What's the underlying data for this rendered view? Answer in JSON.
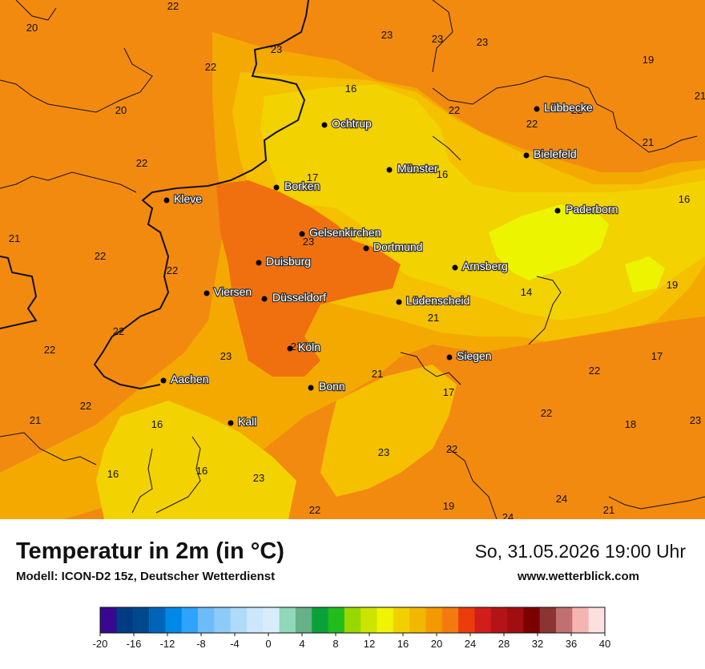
{
  "title": "Temperatur in 2m (in °C)",
  "model": "Modell: ICON-D2 15z, Deutscher Wetterdienst",
  "datetime": "So, 31.05.2026 19:00 Uhr",
  "website": "www.wetterblick.com",
  "colors": {
    "t16": "#f2d200",
    "t18": "#f4c000",
    "t20": "#f4a900",
    "t22": "#f38a10",
    "t24": "#f07010",
    "t14": "#ecf400"
  },
  "cities": [
    {
      "name": "Lübbecke"
    },
    {
      "name": "Ochtrup"
    },
    {
      "name": "Bielefeld"
    },
    {
      "name": "Münster"
    },
    {
      "name": "Borken"
    },
    {
      "name": "Kleve"
    },
    {
      "name": "Paderborn"
    },
    {
      "name": "Gelsenkirchen"
    },
    {
      "name": "Dortmund"
    },
    {
      "name": "Duisburg"
    },
    {
      "name": "Arnsberg"
    },
    {
      "name": "Viersen"
    },
    {
      "name": "Düsseldorf"
    },
    {
      "name": "Lüdenscheid"
    },
    {
      "name": "Köln"
    },
    {
      "name": "Siegen"
    },
    {
      "name": "Aachen"
    },
    {
      "name": "Bonn"
    },
    {
      "name": "Kall"
    }
  ],
  "values": [
    "22",
    "20",
    "23",
    "23",
    "23",
    "23",
    "19",
    "22",
    "16",
    "20",
    "22",
    "22",
    "21",
    "21",
    "22",
    "17",
    "16",
    "16",
    "22",
    "23",
    "21",
    "22",
    "22",
    "19",
    "14",
    "22",
    "21",
    "23",
    "23",
    "22",
    "17",
    "21",
    "22",
    "22",
    "17",
    "22",
    "16",
    "21",
    "22",
    "23",
    "18",
    "23",
    "16",
    "16",
    "22",
    "19",
    "24",
    "24",
    "21",
    "23"
  ],
  "legend": {
    "ticks": [
      "-20",
      "-16",
      "-12",
      "-8",
      "-4",
      "0",
      "4",
      "8",
      "12",
      "16",
      "20",
      "24",
      "28",
      "32",
      "36",
      "40"
    ],
    "colors": [
      "#3a0890",
      "#003c84",
      "#00488c",
      "#0064b8",
      "#0088e6",
      "#2ea2fc",
      "#6cbcfc",
      "#8ccaf8",
      "#b0dafa",
      "#cce6fc",
      "#d8ecfc",
      "#90d8b8",
      "#66b08a",
      "#0ca03a",
      "#22bc1c",
      "#98d800",
      "#cce400",
      "#f0f400",
      "#f2d000",
      "#f2b800",
      "#f49a00",
      "#f47a10",
      "#ec3c0c",
      "#d01e1a",
      "#b41418",
      "#a00e12",
      "#7c0000",
      "#8c3434",
      "#c07070",
      "#f4b4b0",
      "#fce0e0"
    ]
  }
}
